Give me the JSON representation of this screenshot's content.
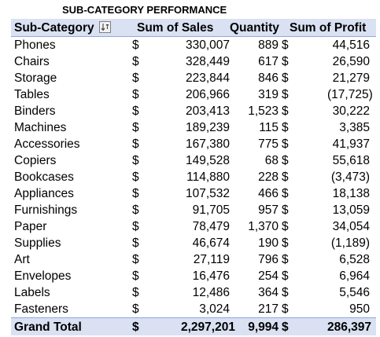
{
  "title": "SUB-CATEGORY PERFORMANCE",
  "header": {
    "sub_category": "Sub-Category",
    "sum_of_sales": "Sum of Sales",
    "quantity": "Quantity",
    "sum_of_profit": "Sum of Profit"
  },
  "currency_symbol": "$",
  "rows": [
    {
      "name": "Phones",
      "sales": "330,007",
      "qty": "889",
      "profit": "44,516"
    },
    {
      "name": "Chairs",
      "sales": "328,449",
      "qty": "617",
      "profit": "26,590"
    },
    {
      "name": "Storage",
      "sales": "223,844",
      "qty": "846",
      "profit": "21,279"
    },
    {
      "name": "Tables",
      "sales": "206,966",
      "qty": "319",
      "profit": "(17,725)"
    },
    {
      "name": "Binders",
      "sales": "203,413",
      "qty": "1,523",
      "profit": "30,222"
    },
    {
      "name": "Machines",
      "sales": "189,239",
      "qty": "115",
      "profit": "3,385"
    },
    {
      "name": "Accessories",
      "sales": "167,380",
      "qty": "775",
      "profit": "41,937"
    },
    {
      "name": "Copiers",
      "sales": "149,528",
      "qty": "68",
      "profit": "55,618"
    },
    {
      "name": "Bookcases",
      "sales": "114,880",
      "qty": "228",
      "profit": "(3,473)"
    },
    {
      "name": "Appliances",
      "sales": "107,532",
      "qty": "466",
      "profit": "18,138"
    },
    {
      "name": "Furnishings",
      "sales": "91,705",
      "qty": "957",
      "profit": "13,059"
    },
    {
      "name": "Paper",
      "sales": "78,479",
      "qty": "1,370",
      "profit": "34,054"
    },
    {
      "name": "Supplies",
      "sales": "46,674",
      "qty": "190",
      "profit": "(1,189)"
    },
    {
      "name": "Art",
      "sales": "27,119",
      "qty": "796",
      "profit": "6,528"
    },
    {
      "name": "Envelopes",
      "sales": "16,476",
      "qty": "254",
      "profit": "6,964"
    },
    {
      "name": "Labels",
      "sales": "12,486",
      "qty": "364",
      "profit": "5,546"
    },
    {
      "name": "Fasteners",
      "sales": "3,024",
      "qty": "217",
      "profit": "950"
    }
  ],
  "total": {
    "label": "Grand Total",
    "sales": "2,297,201",
    "qty": "9,994",
    "profit": "286,397"
  },
  "colors": {
    "header_fill": "#d9e1f2",
    "header_border": "#8ea9db"
  },
  "icons": {
    "filter": "sort-descending-filter-icon"
  }
}
